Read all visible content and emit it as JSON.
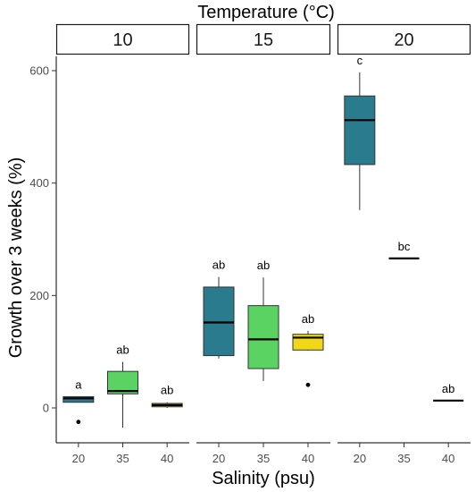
{
  "chart_data": {
    "type": "boxplot",
    "title": "Temperature (°C)",
    "xlabel": "Salinity (psu)",
    "ylabel": "Growth over 3 weeks (%)",
    "ylim": [
      -78,
      625
    ],
    "yticks": [
      0,
      200,
      400,
      600
    ],
    "grid": false,
    "legend": "none",
    "facets": [
      {
        "label": "10",
        "groups": [
          {
            "x": "20",
            "color": "#2a7b8e",
            "whisker_low": 10,
            "q1": 10,
            "median": 17,
            "q3": 20,
            "whisker_high": 20,
            "outliers": [
              -25
            ],
            "letter": "a"
          },
          {
            "x": "35",
            "color": "#5bd363",
            "whisker_low": -35,
            "q1": 25,
            "median": 30,
            "q3": 65,
            "whisker_high": 82,
            "outliers": [],
            "letter": "ab"
          },
          {
            "x": "40",
            "color": "#f2d716",
            "whisker_low": 0,
            "q1": 2,
            "median": 5,
            "q3": 8,
            "whisker_high": 10,
            "outliers": [],
            "letter": "ab"
          }
        ]
      },
      {
        "label": "15",
        "groups": [
          {
            "x": "20",
            "color": "#2a7b8e",
            "whisker_low": 88,
            "q1": 93,
            "median": 152,
            "q3": 215,
            "whisker_high": 233,
            "outliers": [],
            "letter": "ab"
          },
          {
            "x": "35",
            "color": "#5bd363",
            "whisker_low": 48,
            "q1": 70,
            "median": 122,
            "q3": 182,
            "whisker_high": 232,
            "outliers": [],
            "letter": "ab"
          },
          {
            "x": "40",
            "color": "#f2d716",
            "whisker_low": 102,
            "q1": 103,
            "median": 125,
            "q3": 131,
            "whisker_high": 137,
            "outliers": [
              41
            ],
            "letter": "ab"
          }
        ]
      },
      {
        "label": "20",
        "groups": [
          {
            "x": "20",
            "color": "#2a7b8e",
            "whisker_low": 352,
            "q1": 433,
            "median": 512,
            "q3": 555,
            "whisker_high": 597,
            "outliers": [],
            "letter": "c"
          },
          {
            "x": "35",
            "color": "#5bd363",
            "whisker_low": 266,
            "q1": 266,
            "median": 266,
            "q3": 266,
            "whisker_high": 266,
            "outliers": [],
            "letter": "bc"
          },
          {
            "x": "40",
            "color": "#f2d716",
            "whisker_low": 13,
            "q1": 13,
            "median": 13,
            "q3": 13,
            "whisker_high": 13,
            "outliers": [],
            "letter": "ab"
          }
        ]
      }
    ]
  }
}
